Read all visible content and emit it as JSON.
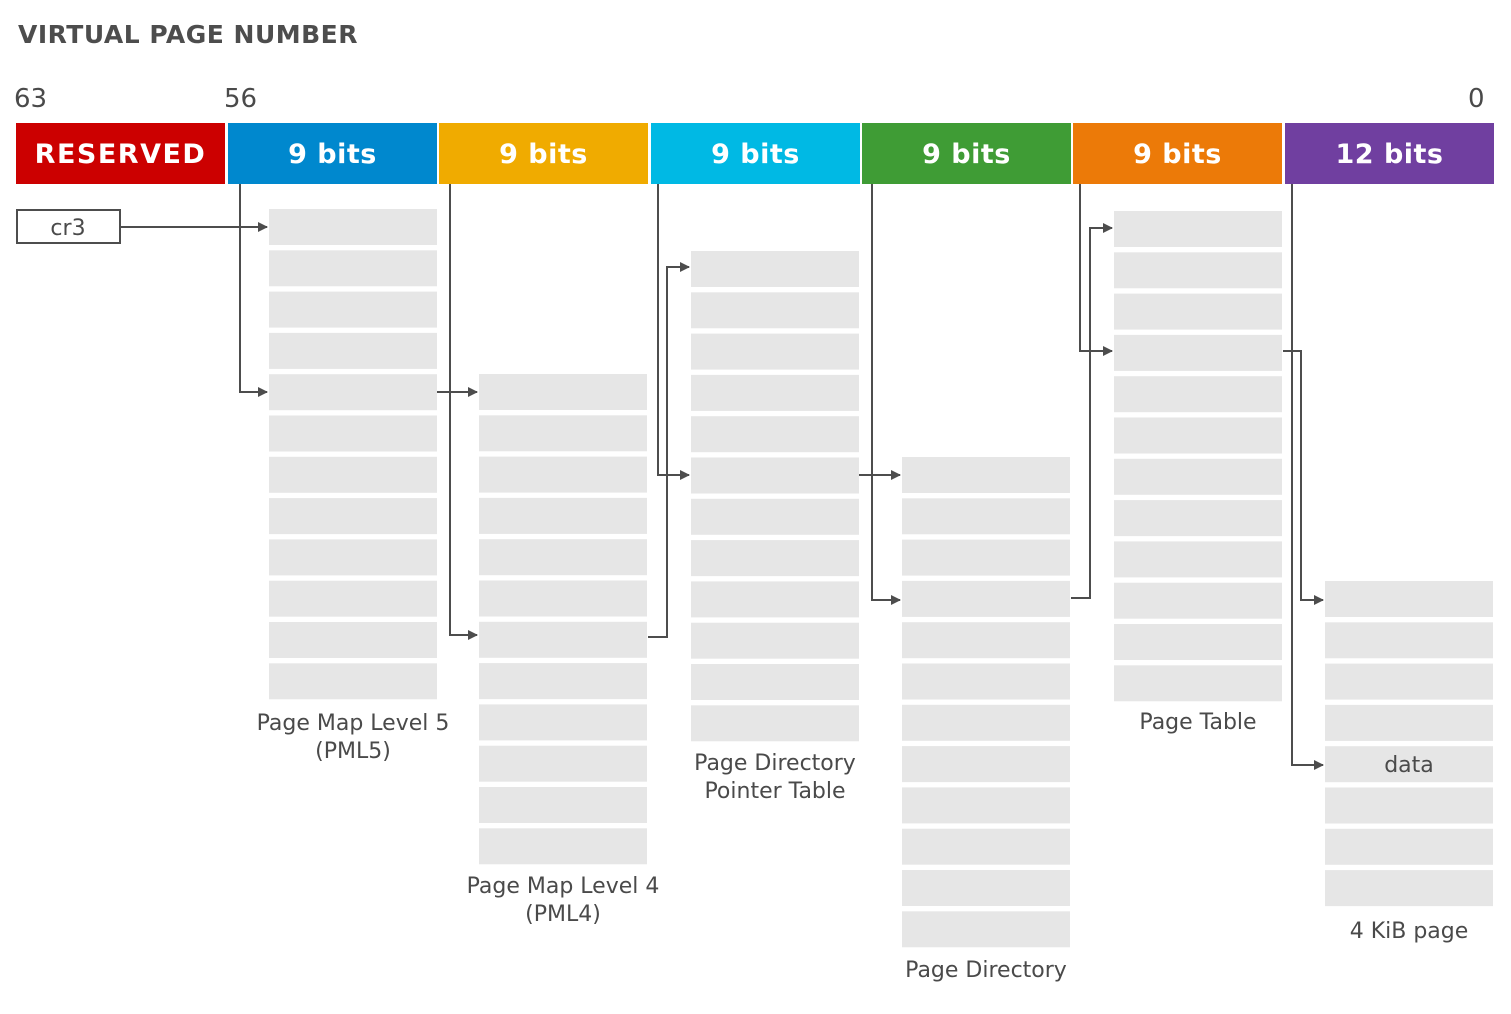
{
  "title": "VIRTUAL PAGE NUMBER",
  "bit_labels": {
    "high": "63",
    "mid": "56",
    "low": "0"
  },
  "segments": [
    {
      "label": "RESERVED",
      "color": "#cc0000"
    },
    {
      "label": "9 bits",
      "color": "#0088ce"
    },
    {
      "label": "9 bits",
      "color": "#f0ab00"
    },
    {
      "label": "9 bits",
      "color": "#00b9e4"
    },
    {
      "label": "9 bits",
      "color": "#3f9c35"
    },
    {
      "label": "9 bits",
      "color": "#ec7a08"
    },
    {
      "label": "12 bits",
      "color": "#703fa0"
    }
  ],
  "register": {
    "label": "cr3"
  },
  "tables": [
    {
      "name": "Page Map Level 5",
      "name2": "(PML5)",
      "entries": 12
    },
    {
      "name": "Page Map Level 4",
      "name2": "(PML4)",
      "entries": 12
    },
    {
      "name": "Page Directory",
      "name2": "Pointer Table",
      "entries": 12
    },
    {
      "name": "Page Directory",
      "name2": "",
      "entries": 12
    },
    {
      "name": "Page Table",
      "name2": "",
      "entries": 12
    },
    {
      "name": "4 KiB page",
      "name2": "",
      "entries": 8,
      "data_label": "data"
    }
  ],
  "colors": {
    "cell": "#e6e6e6",
    "line": "#4d4d4d"
  }
}
